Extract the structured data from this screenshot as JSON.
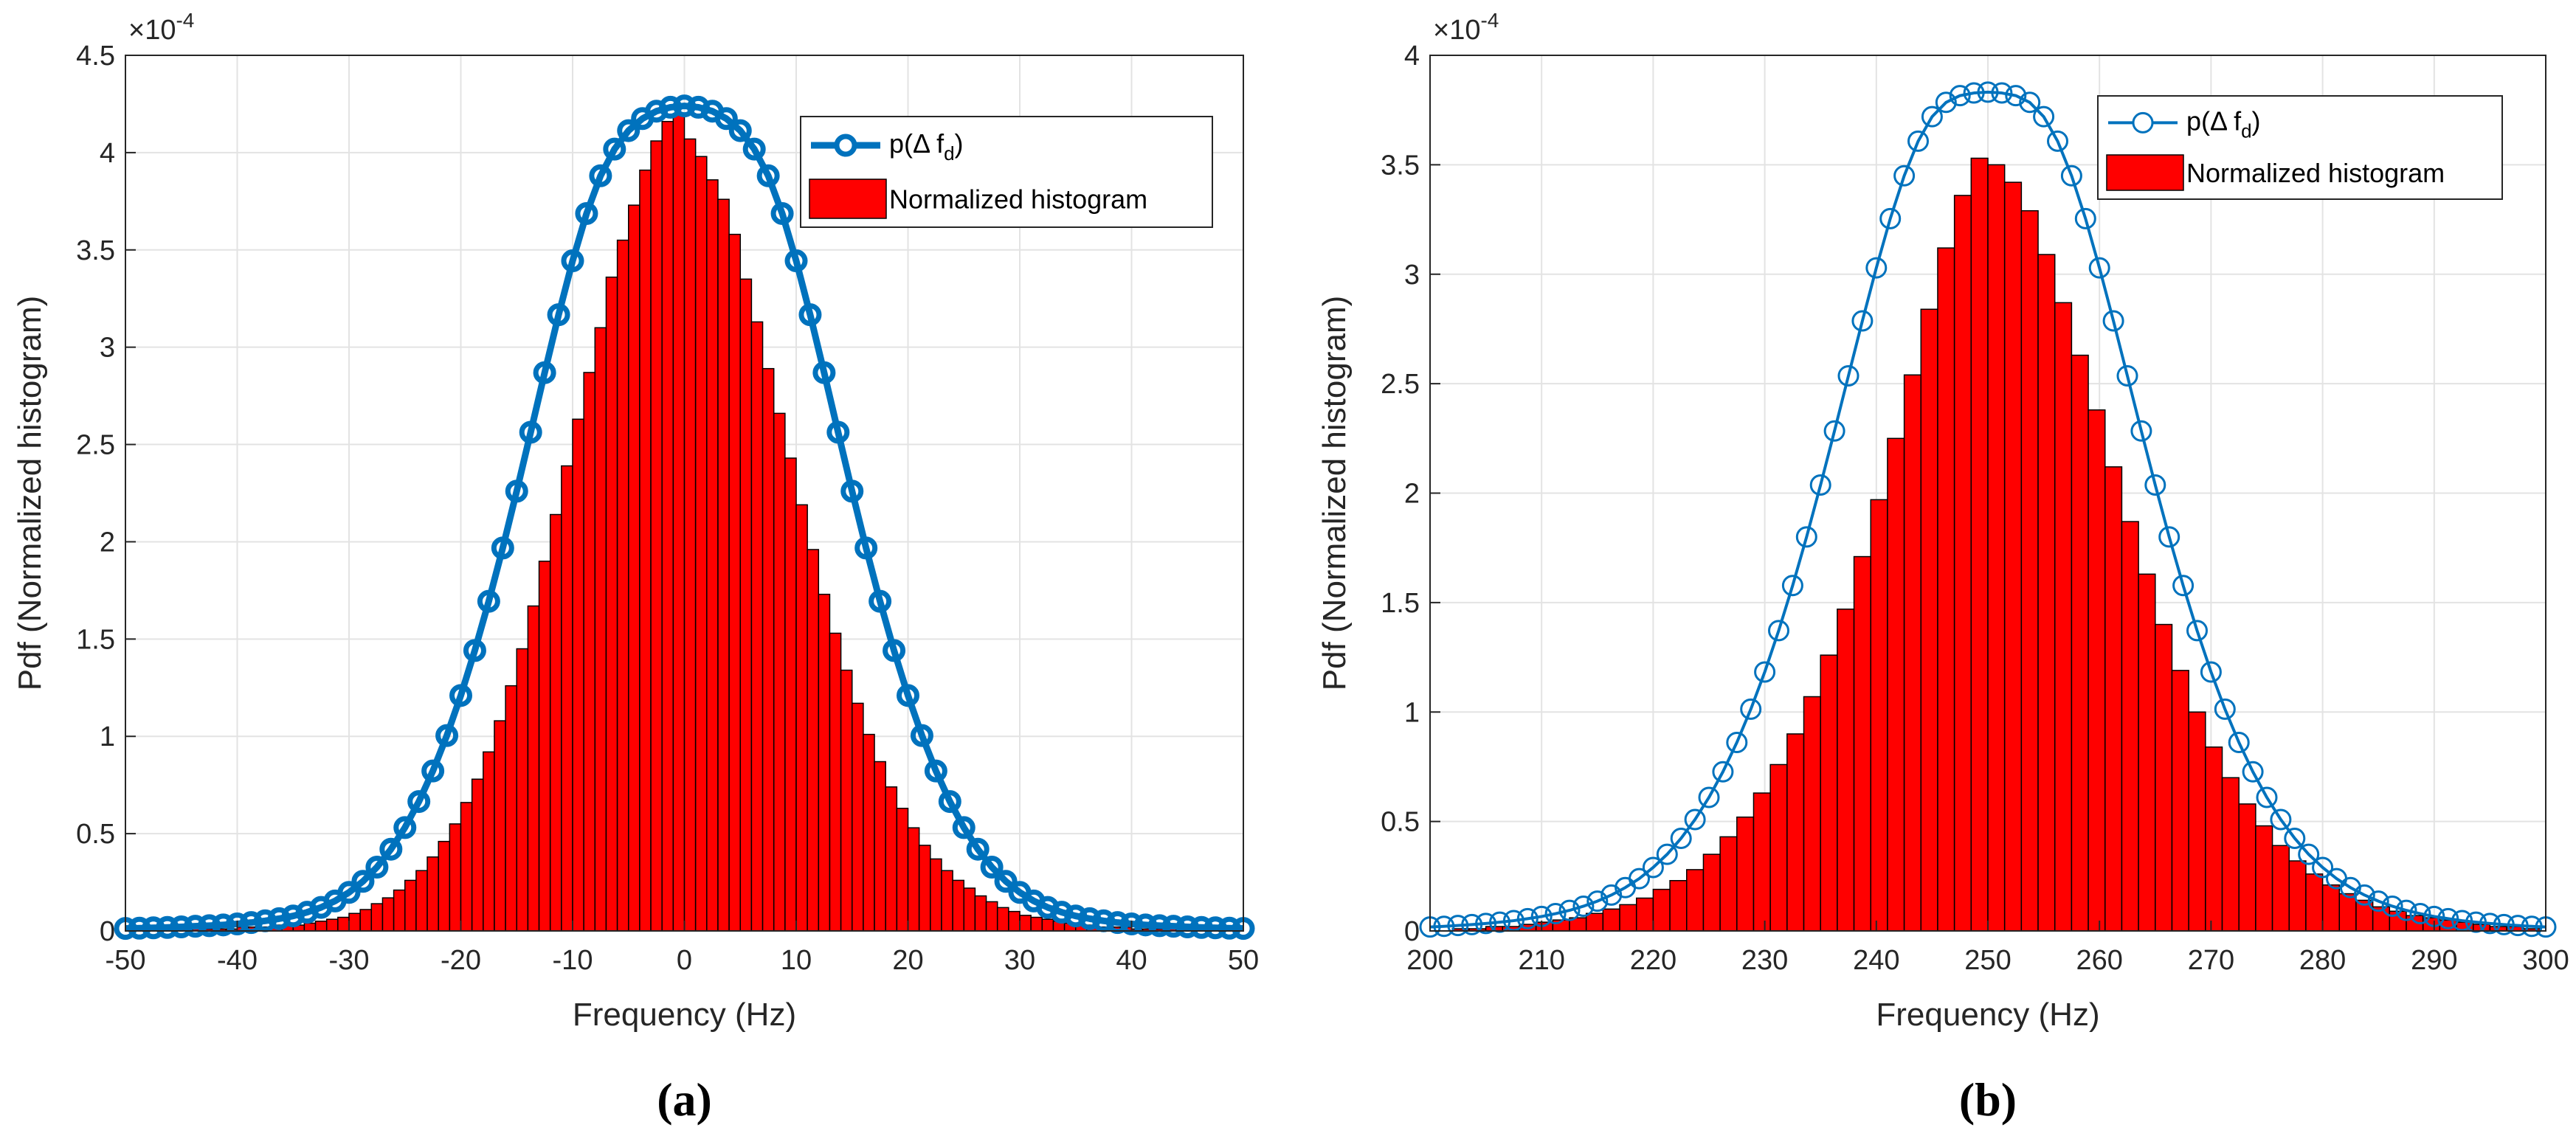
{
  "chart_data": [
    {
      "type": "bar",
      "panel": "(a)",
      "caption": "a",
      "xlabel": "Frequency (Hz)",
      "ylabel": "Pdf (Normalized histogram)",
      "xlim": [
        -50,
        50
      ],
      "ylim": [
        0,
        4.5
      ],
      "y_multiplier": "×10",
      "y_exponent": "-4",
      "xticks": [
        "-50",
        "-40",
        "-30",
        "-20",
        "-10",
        "0",
        "10",
        "20",
        "30",
        "40",
        "50"
      ],
      "yticks": [
        "0",
        "0.5",
        "1",
        "1.5",
        "2",
        "2.5",
        "3",
        "3.5",
        "4",
        "4.5"
      ],
      "grid": true,
      "legend_position": "top-right",
      "legend": {
        "curve": "p(Δ f",
        "curve_sub": "d",
        "curve_close": ")",
        "hist": "Normalized histogram"
      },
      "curve_style": "thick",
      "curve": {
        "name": "p(Δ f_d)",
        "x": [
          -50,
          -48.75,
          -47.5,
          -46.25,
          -45,
          -43.75,
          -42.5,
          -41.25,
          -40,
          -38.75,
          -37.5,
          -36.25,
          -35,
          -33.75,
          -32.5,
          -31.25,
          -30,
          -28.75,
          -27.5,
          -26.25,
          -25,
          -23.75,
          -22.5,
          -21.25,
          -20,
          -18.75,
          -17.5,
          -16.25,
          -15,
          -13.75,
          -12.5,
          -11.25,
          -10,
          -8.75,
          -7.5,
          -6.25,
          -5,
          -3.75,
          -2.5,
          -1.25,
          0,
          1.25,
          2.5,
          3.75,
          5,
          6.25,
          7.5,
          8.75,
          10,
          11.25,
          12.5,
          13.75,
          15,
          16.25,
          17.5,
          18.75,
          20,
          21.25,
          22.5,
          23.75,
          25,
          26.25,
          27.5,
          28.75,
          30,
          31.25,
          32.5,
          33.75,
          35,
          36.25,
          37.5,
          38.75,
          40,
          41.25,
          42.5,
          43.75,
          45,
          46.25,
          47.5,
          48.75,
          50
        ],
        "values": [
          0.013,
          0.014,
          0.016,
          0.018,
          0.021,
          0.024,
          0.027,
          0.031,
          0.036,
          0.043,
          0.052,
          0.063,
          0.077,
          0.096,
          0.121,
          0.154,
          0.198,
          0.255,
          0.328,
          0.42,
          0.531,
          0.665,
          0.822,
          1.004,
          1.21,
          1.441,
          1.694,
          1.968,
          2.26,
          2.563,
          2.869,
          3.167,
          3.444,
          3.687,
          3.881,
          4.018,
          4.113,
          4.175,
          4.213,
          4.233,
          4.24,
          4.233,
          4.213,
          4.175,
          4.113,
          4.018,
          3.881,
          3.687,
          3.444,
          3.167,
          2.869,
          2.563,
          2.26,
          1.968,
          1.694,
          1.441,
          1.21,
          1.004,
          0.822,
          0.665,
          0.531,
          0.42,
          0.328,
          0.255,
          0.198,
          0.154,
          0.121,
          0.096,
          0.077,
          0.063,
          0.052,
          0.043,
          0.036,
          0.031,
          0.027,
          0.024,
          0.021,
          0.018,
          0.016,
          0.014,
          0.013
        ]
      },
      "histogram": {
        "name": "Normalized histogram",
        "bin_width": 1.0,
        "x": [
          -44.5,
          -43.5,
          -42.5,
          -41.5,
          -40.5,
          -39.5,
          -38.5,
          -37.5,
          -36.5,
          -35.5,
          -34.5,
          -33.5,
          -32.5,
          -31.5,
          -30.5,
          -29.5,
          -28.5,
          -27.5,
          -26.5,
          -25.5,
          -24.5,
          -23.5,
          -22.5,
          -21.5,
          -20.5,
          -19.5,
          -18.5,
          -17.5,
          -16.5,
          -15.5,
          -14.5,
          -13.5,
          -12.5,
          -11.5,
          -10.5,
          -9.5,
          -8.5,
          -7.5,
          -6.5,
          -5.5,
          -4.5,
          -3.5,
          -2.5,
          -1.5,
          -0.5,
          0.5,
          1.5,
          2.5,
          3.5,
          4.5,
          5.5,
          6.5,
          7.5,
          8.5,
          9.5,
          10.5,
          11.5,
          12.5,
          13.5,
          14.5,
          15.5,
          16.5,
          17.5,
          18.5,
          19.5,
          20.5,
          21.5,
          22.5,
          23.5,
          24.5,
          25.5,
          26.5,
          27.5,
          28.5,
          29.5,
          30.5,
          31.5,
          32.5,
          33.5,
          34.5,
          35.5,
          36.5,
          37.5,
          38.5,
          39.5,
          40.5,
          41.5,
          42.5,
          43.5,
          44.5,
          45.5,
          46.5,
          47.5,
          48.5
        ],
        "values": [
          0.01,
          0.01,
          0.01,
          0.01,
          0.01,
          0.02,
          0.02,
          0.02,
          0.03,
          0.03,
          0.03,
          0.04,
          0.05,
          0.06,
          0.07,
          0.09,
          0.11,
          0.14,
          0.17,
          0.21,
          0.26,
          0.31,
          0.38,
          0.46,
          0.55,
          0.66,
          0.78,
          0.92,
          1.08,
          1.26,
          1.45,
          1.67,
          1.9,
          2.14,
          2.39,
          2.63,
          2.87,
          3.1,
          3.36,
          3.55,
          3.73,
          3.91,
          4.06,
          4.16,
          4.2,
          4.07,
          3.98,
          3.86,
          3.76,
          3.58,
          3.35,
          3.13,
          2.89,
          2.66,
          2.43,
          2.19,
          1.96,
          1.73,
          1.53,
          1.34,
          1.17,
          1.01,
          0.87,
          0.74,
          0.63,
          0.53,
          0.44,
          0.37,
          0.31,
          0.26,
          0.22,
          0.18,
          0.15,
          0.12,
          0.1,
          0.08,
          0.07,
          0.06,
          0.05,
          0.04,
          0.03,
          0.03,
          0.02,
          0.02,
          0.02,
          0.01,
          0.01,
          0.01,
          0.01,
          0.01,
          0.01,
          0.0,
          0.0,
          0.0
        ]
      }
    },
    {
      "type": "bar",
      "panel": "(b)",
      "caption": "b",
      "xlabel": "Frequency (Hz)",
      "ylabel": "Pdf (Normalized histogram)",
      "xlim": [
        200,
        300
      ],
      "ylim": [
        0,
        4
      ],
      "y_multiplier": "×10",
      "y_exponent": "-4",
      "xticks": [
        "200",
        "210",
        "220",
        "230",
        "240",
        "250",
        "260",
        "270",
        "280",
        "290",
        "300"
      ],
      "yticks": [
        "0",
        "0.5",
        "1",
        "1.5",
        "2",
        "2.5",
        "3",
        "3.5",
        "4"
      ],
      "grid": true,
      "legend_position": "top-right",
      "legend": {
        "curve": "p(Δ f",
        "curve_sub": "d",
        "curve_close": ")",
        "hist": "Normalized histogram"
      },
      "curve_style": "thin",
      "curve": {
        "name": "p(Δ f_d)",
        "x": [
          200,
          201.25,
          202.5,
          203.75,
          205,
          206.25,
          207.5,
          208.75,
          210,
          211.25,
          212.5,
          213.75,
          215,
          216.25,
          217.5,
          218.75,
          220,
          221.25,
          222.5,
          223.75,
          225,
          226.25,
          227.5,
          228.75,
          230,
          231.25,
          232.5,
          233.75,
          235,
          236.25,
          237.5,
          238.75,
          240,
          241.25,
          242.5,
          243.75,
          245,
          246.25,
          247.5,
          248.75,
          250,
          251.25,
          252.5,
          253.75,
          255,
          256.25,
          257.5,
          258.75,
          260,
          261.25,
          262.5,
          263.75,
          265,
          266.25,
          267.5,
          268.75,
          270,
          271.25,
          272.5,
          273.75,
          275,
          276.25,
          277.5,
          278.75,
          280,
          281.25,
          282.5,
          283.75,
          285,
          286.25,
          287.5,
          288.75,
          290,
          291.25,
          292.5,
          293.75,
          295,
          296.25,
          297.5,
          298.75,
          300
        ],
        "values": [
          0.018,
          0.021,
          0.025,
          0.029,
          0.034,
          0.04,
          0.047,
          0.056,
          0.066,
          0.079,
          0.094,
          0.113,
          0.136,
          0.164,
          0.198,
          0.239,
          0.29,
          0.35,
          0.423,
          0.509,
          0.61,
          0.727,
          0.861,
          1.013,
          1.183,
          1.372,
          1.578,
          1.8,
          2.037,
          2.284,
          2.536,
          2.787,
          3.029,
          3.254,
          3.45,
          3.608,
          3.72,
          3.785,
          3.816,
          3.828,
          3.832,
          3.828,
          3.816,
          3.785,
          3.72,
          3.608,
          3.45,
          3.254,
          3.029,
          2.787,
          2.536,
          2.284,
          2.037,
          1.8,
          1.578,
          1.372,
          1.183,
          1.013,
          0.861,
          0.727,
          0.61,
          0.509,
          0.423,
          0.35,
          0.29,
          0.239,
          0.198,
          0.164,
          0.136,
          0.113,
          0.094,
          0.079,
          0.066,
          0.056,
          0.047,
          0.04,
          0.034,
          0.029,
          0.025,
          0.021,
          0.018
        ]
      },
      "histogram": {
        "name": "Normalized histogram",
        "bin_width": 1.5,
        "x": [
          202.75,
          204.25,
          205.75,
          207.25,
          208.75,
          210.25,
          211.75,
          213.25,
          214.75,
          216.25,
          217.75,
          219.25,
          220.75,
          222.25,
          223.75,
          225.25,
          226.75,
          228.25,
          229.75,
          231.25,
          232.75,
          234.25,
          235.75,
          237.25,
          238.75,
          240.25,
          241.75,
          243.25,
          244.75,
          246.25,
          247.75,
          249.25,
          250.75,
          252.25,
          253.75,
          255.25,
          256.75,
          258.25,
          259.75,
          261.25,
          262.75,
          264.25,
          265.75,
          267.25,
          268.75,
          270.25,
          271.75,
          273.25,
          274.75,
          276.25,
          277.75,
          279.25,
          280.75,
          282.25,
          283.75,
          285.25,
          286.75,
          288.25,
          289.75,
          291.25,
          292.75,
          294.25,
          295.75,
          297.25,
          298.75
        ],
        "values": [
          0.01,
          0.01,
          0.02,
          0.02,
          0.03,
          0.04,
          0.05,
          0.06,
          0.08,
          0.1,
          0.12,
          0.15,
          0.19,
          0.23,
          0.28,
          0.35,
          0.43,
          0.52,
          0.63,
          0.76,
          0.9,
          1.07,
          1.26,
          1.47,
          1.71,
          1.97,
          2.25,
          2.54,
          2.84,
          3.12,
          3.36,
          3.53,
          3.5,
          3.42,
          3.29,
          3.09,
          2.87,
          2.63,
          2.38,
          2.12,
          1.87,
          1.63,
          1.4,
          1.19,
          1.0,
          0.84,
          0.7,
          0.58,
          0.48,
          0.39,
          0.32,
          0.26,
          0.21,
          0.17,
          0.14,
          0.11,
          0.09,
          0.07,
          0.06,
          0.05,
          0.04,
          0.03,
          0.02,
          0.02,
          0.01
        ]
      }
    }
  ]
}
